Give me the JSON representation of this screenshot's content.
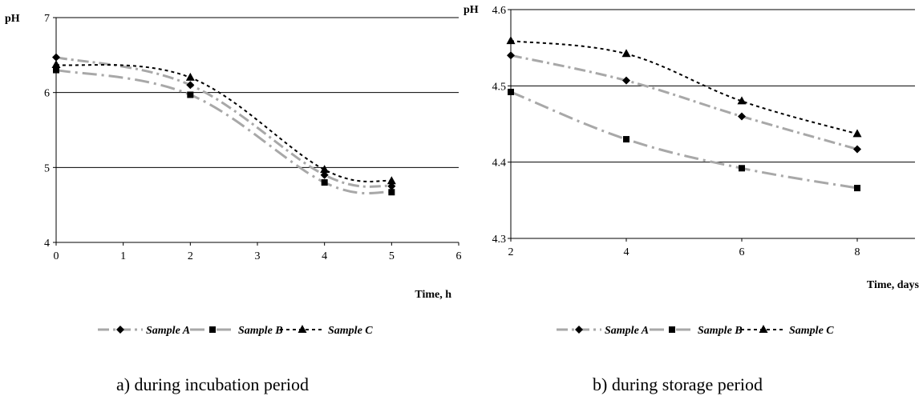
{
  "chart_data": [
    {
      "type": "line",
      "ylabel": "pH",
      "xlabel": "Time, h",
      "caption": "a) during incubation period",
      "xlim": [
        0,
        6
      ],
      "ylim": [
        4,
        7
      ],
      "xticks": [
        "0",
        "1",
        "2",
        "3",
        "4",
        "5",
        "6"
      ],
      "yticks": [
        "4",
        "5",
        "6",
        "7"
      ],
      "grid": "horizontal",
      "legend": "bottom",
      "series": [
        {
          "name": "Sample A",
          "marker": "diamond",
          "dash": "a",
          "x": [
            0,
            2,
            4,
            5
          ],
          "y": [
            6.47,
            6.1,
            4.9,
            4.75
          ]
        },
        {
          "name": "Sample B",
          "marker": "square",
          "dash": "b",
          "x": [
            0,
            2,
            4,
            5
          ],
          "y": [
            6.3,
            5.97,
            4.8,
            4.67
          ]
        },
        {
          "name": "Sample C",
          "marker": "triangle",
          "dash": "c",
          "x": [
            0,
            2,
            4,
            5
          ],
          "y": [
            6.37,
            6.2,
            4.97,
            4.82
          ]
        }
      ]
    },
    {
      "type": "line",
      "ylabel": "pH",
      "xlabel": "Time, days",
      "caption": "b) during storage period",
      "xlim": [
        2,
        9
      ],
      "ylim": [
        4.3,
        4.6
      ],
      "xticks": [
        "2",
        "4",
        "6",
        "8"
      ],
      "yticks": [
        "4.3",
        "4.4",
        "4.5",
        "4.6"
      ],
      "grid": "horizontal",
      "legend": "bottom",
      "series": [
        {
          "name": "Sample A",
          "marker": "diamond",
          "dash": "a",
          "x": [
            2,
            4,
            6,
            8
          ],
          "y": [
            4.54,
            4.507,
            4.46,
            4.417
          ]
        },
        {
          "name": "Sample B",
          "marker": "square",
          "dash": "b",
          "x": [
            2,
            4,
            6,
            8
          ],
          "y": [
            4.492,
            4.43,
            4.392,
            4.366
          ]
        },
        {
          "name": "Sample C",
          "marker": "triangle",
          "dash": "c",
          "x": [
            2,
            4,
            6,
            8
          ],
          "y": [
            4.559,
            4.542,
            4.48,
            4.437
          ]
        }
      ]
    }
  ]
}
